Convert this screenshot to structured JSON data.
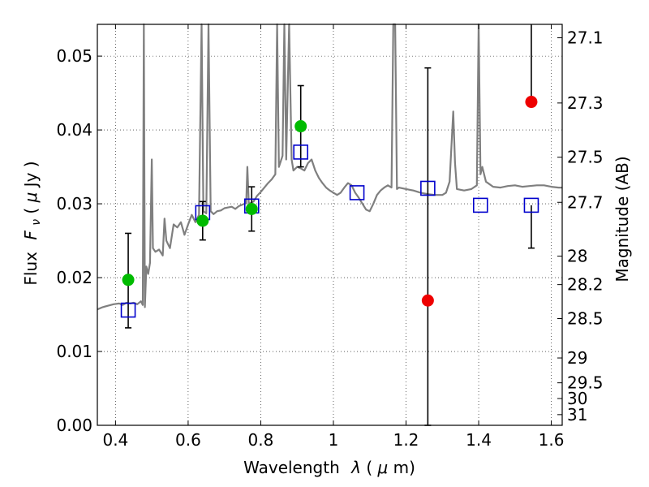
{
  "chart_data": {
    "type": "scatter",
    "xlabel_text": "Wavelength",
    "xlabel_symbol": "λ",
    "xlabel_unit_open": " (",
    "xlabel_unit_mu": "μ",
    "xlabel_unit_close": "m)",
    "ylabel_text": "Flux",
    "ylabel_symbol": "F",
    "ylabel_subscript": "ν",
    "ylabel_unit_open": " ( ",
    "ylabel_unit_mu": "μ",
    "ylabel_unit_close": "Jy )",
    "y2label": "Magnitude (AB)",
    "xlim": [
      0.35,
      1.63
    ],
    "ylim": [
      0.0,
      0.0543
    ],
    "grid": true,
    "x_ticks": [
      {
        "v": 0.4,
        "label": "0.4"
      },
      {
        "v": 0.6,
        "label": "0.6"
      },
      {
        "v": 0.8,
        "label": "0.8"
      },
      {
        "v": 1.0,
        "label": "1"
      },
      {
        "v": 1.2,
        "label": "1.2"
      },
      {
        "v": 1.4,
        "label": "1.4"
      },
      {
        "v": 1.6,
        "label": "1.6"
      }
    ],
    "y_ticks": [
      {
        "v": 0.0,
        "label": "0.00"
      },
      {
        "v": 0.01,
        "label": "0.01"
      },
      {
        "v": 0.02,
        "label": "0.02"
      },
      {
        "v": 0.03,
        "label": "0.03"
      },
      {
        "v": 0.04,
        "label": "0.04"
      },
      {
        "v": 0.05,
        "label": "0.05"
      }
    ],
    "mag_ticks": [
      {
        "v": 27.1,
        "label": "27.1"
      },
      {
        "v": 27.3,
        "label": "27.3"
      },
      {
        "v": 27.5,
        "label": "27.5"
      },
      {
        "v": 27.7,
        "label": "27.7"
      },
      {
        "v": 28.0,
        "label": "28"
      },
      {
        "v": 28.2,
        "label": "28.2"
      },
      {
        "v": 28.5,
        "label": "28.5"
      },
      {
        "v": 29.0,
        "label": "29"
      },
      {
        "v": 29.5,
        "label": "29.5"
      },
      {
        "v": 30.0,
        "label": "30"
      },
      {
        "v": 31.0,
        "label": "31"
      }
    ],
    "colors": {
      "spectrum": "#7f7f7f",
      "model": "#0000cc",
      "detection": "#00bb00",
      "upper_limit": "#ee0000",
      "errorbar": "#000000"
    },
    "spectrum": [
      [
        0.35,
        0.0157
      ],
      [
        0.365,
        0.016
      ],
      [
        0.38,
        0.0162
      ],
      [
        0.395,
        0.0164
      ],
      [
        0.41,
        0.0165
      ],
      [
        0.42,
        0.0163
      ],
      [
        0.43,
        0.0166
      ],
      [
        0.44,
        0.0165
      ],
      [
        0.45,
        0.0166
      ],
      [
        0.46,
        0.0164
      ],
      [
        0.47,
        0.0168
      ],
      [
        0.475,
        0.0163
      ],
      [
        0.478,
        0.055
      ],
      [
        0.481,
        0.016
      ],
      [
        0.485,
        0.0215
      ],
      [
        0.49,
        0.0205
      ],
      [
        0.495,
        0.022
      ],
      [
        0.5,
        0.036
      ],
      [
        0.503,
        0.024
      ],
      [
        0.51,
        0.0235
      ],
      [
        0.52,
        0.0238
      ],
      [
        0.53,
        0.023
      ],
      [
        0.535,
        0.028
      ],
      [
        0.54,
        0.025
      ],
      [
        0.55,
        0.024
      ],
      [
        0.56,
        0.0272
      ],
      [
        0.57,
        0.0268
      ],
      [
        0.58,
        0.0275
      ],
      [
        0.59,
        0.0258
      ],
      [
        0.6,
        0.0272
      ],
      [
        0.61,
        0.0285
      ],
      [
        0.62,
        0.0275
      ],
      [
        0.63,
        0.0285
      ],
      [
        0.637,
        0.055
      ],
      [
        0.642,
        0.029
      ],
      [
        0.65,
        0.0287
      ],
      [
        0.656,
        0.055
      ],
      [
        0.662,
        0.029
      ],
      [
        0.67,
        0.0286
      ],
      [
        0.68,
        0.029
      ],
      [
        0.69,
        0.0291
      ],
      [
        0.7,
        0.0294
      ],
      [
        0.71,
        0.0295
      ],
      [
        0.72,
        0.0296
      ],
      [
        0.73,
        0.0293
      ],
      [
        0.74,
        0.0297
      ],
      [
        0.75,
        0.0299
      ],
      [
        0.76,
        0.0301
      ],
      [
        0.763,
        0.035
      ],
      [
        0.767,
        0.03
      ],
      [
        0.78,
        0.0303
      ],
      [
        0.79,
        0.0311
      ],
      [
        0.8,
        0.0316
      ],
      [
        0.81,
        0.0322
      ],
      [
        0.82,
        0.0328
      ],
      [
        0.83,
        0.0333
      ],
      [
        0.84,
        0.034
      ],
      [
        0.845,
        0.055
      ],
      [
        0.85,
        0.035
      ],
      [
        0.86,
        0.0365
      ],
      [
        0.865,
        0.055
      ],
      [
        0.87,
        0.036
      ],
      [
        0.878,
        0.055
      ],
      [
        0.885,
        0.036
      ],
      [
        0.89,
        0.0345
      ],
      [
        0.9,
        0.035
      ],
      [
        0.91,
        0.0348
      ],
      [
        0.92,
        0.0345
      ],
      [
        0.93,
        0.0355
      ],
      [
        0.94,
        0.036
      ],
      [
        0.95,
        0.0345
      ],
      [
        0.96,
        0.0335
      ],
      [
        0.97,
        0.0328
      ],
      [
        0.98,
        0.0322
      ],
      [
        0.99,
        0.0318
      ],
      [
        1.0,
        0.0315
      ],
      [
        1.01,
        0.0312
      ],
      [
        1.02,
        0.0315
      ],
      [
        1.03,
        0.0322
      ],
      [
        1.04,
        0.0328
      ],
      [
        1.05,
        0.0325
      ],
      [
        1.06,
        0.0315
      ],
      [
        1.07,
        0.0308
      ],
      [
        1.08,
        0.03
      ],
      [
        1.09,
        0.0292
      ],
      [
        1.1,
        0.029
      ],
      [
        1.11,
        0.03
      ],
      [
        1.12,
        0.0312
      ],
      [
        1.13,
        0.0318
      ],
      [
        1.14,
        0.0322
      ],
      [
        1.15,
        0.0325
      ],
      [
        1.16,
        0.0322
      ],
      [
        1.165,
        0.055
      ],
      [
        1.17,
        0.055
      ],
      [
        1.175,
        0.032
      ],
      [
        1.18,
        0.0322
      ],
      [
        1.2,
        0.032
      ],
      [
        1.22,
        0.0318
      ],
      [
        1.24,
        0.0315
      ],
      [
        1.26,
        0.0313
      ],
      [
        1.28,
        0.0312
      ],
      [
        1.3,
        0.0312
      ],
      [
        1.31,
        0.0315
      ],
      [
        1.32,
        0.033
      ],
      [
        1.33,
        0.0425
      ],
      [
        1.335,
        0.0355
      ],
      [
        1.34,
        0.032
      ],
      [
        1.36,
        0.0318
      ],
      [
        1.38,
        0.032
      ],
      [
        1.395,
        0.0325
      ],
      [
        1.4,
        0.055
      ],
      [
        1.405,
        0.034
      ],
      [
        1.41,
        0.035
      ],
      [
        1.42,
        0.033
      ],
      [
        1.44,
        0.0323
      ],
      [
        1.46,
        0.0322
      ],
      [
        1.48,
        0.0324
      ],
      [
        1.5,
        0.0325
      ],
      [
        1.52,
        0.0323
      ],
      [
        1.54,
        0.0324
      ],
      [
        1.56,
        0.0325
      ],
      [
        1.58,
        0.0325
      ],
      [
        1.6,
        0.0323
      ],
      [
        1.62,
        0.0322
      ],
      [
        1.63,
        0.0322
      ]
    ],
    "model_points": [
      {
        "x": 0.435,
        "y": 0.0156
      },
      {
        "x": 0.64,
        "y": 0.0288
      },
      {
        "x": 0.775,
        "y": 0.0297
      },
      {
        "x": 0.91,
        "y": 0.037
      },
      {
        "x": 1.065,
        "y": 0.0315
      },
      {
        "x": 1.26,
        "y": 0.0321
      },
      {
        "x": 1.405,
        "y": 0.0298
      },
      {
        "x": 1.545,
        "y": 0.0298
      }
    ],
    "detections": [
      {
        "x": 0.435,
        "y": 0.0197,
        "err_low": 0.0065,
        "err_high": 0.0063
      },
      {
        "x": 0.64,
        "y": 0.0277,
        "err_low": 0.0026,
        "err_high": 0.0026
      },
      {
        "x": 0.775,
        "y": 0.0293,
        "err_low": 0.003,
        "err_high": 0.003
      },
      {
        "x": 0.91,
        "y": 0.0405,
        "err_low": 0.0055,
        "err_high": 0.0055
      }
    ],
    "upper_limits": [
      {
        "x": 1.26,
        "y": 0.0169,
        "err_low": 0.0169,
        "err_high": 0.0315
      },
      {
        "x": 1.545,
        "y": 0.0438,
        "err_high": 0.0162
      }
    ],
    "low_point_bars": [
      {
        "x": 1.545,
        "y": 0.0298,
        "err_low": 0.0058
      }
    ]
  }
}
